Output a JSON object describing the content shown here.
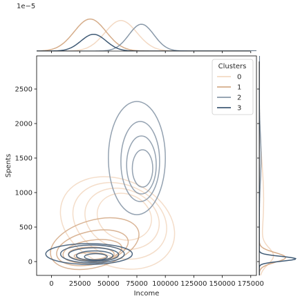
{
  "chart_data": {
    "type": "joint-kde",
    "title": "",
    "xlabel": "Income",
    "ylabel": "Spents",
    "xlim": [
      -13000,
      180000
    ],
    "ylim": [
      -200,
      2980
    ],
    "x_ticks": [
      0,
      25000,
      50000,
      75000,
      100000,
      125000,
      150000,
      175000
    ],
    "y_ticks": [
      0,
      500,
      1000,
      1500,
      2000,
      2500
    ],
    "top_marginal_scale_label": "1e−5",
    "legend": {
      "title": "Clusters",
      "placement": "top-right",
      "entries": [
        "0",
        "1",
        "2",
        "3"
      ]
    },
    "series": [
      {
        "name": "0",
        "color": "#F3D9C3",
        "income_mode": 60000,
        "spent_mode": 1000,
        "contour_levels": [
          {
            "cx": 64000,
            "cy": 650,
            "rx": 20000,
            "ry": 400,
            "angle": 70
          },
          {
            "cx": 62000,
            "cy": 620,
            "rx": 26000,
            "ry": 550,
            "angle": 70
          },
          {
            "cx": 60000,
            "cy": 590,
            "rx": 32000,
            "ry": 700,
            "angle": 68
          },
          {
            "cx": 58000,
            "cy": 560,
            "rx": 38000,
            "ry": 860,
            "angle": 66
          }
        ]
      },
      {
        "name": "1",
        "color": "#D5AC89",
        "income_mode": 34000,
        "spent_mode": 60,
        "contour_levels": [
          {
            "cx": 34000,
            "cy": 80,
            "rx": 14000,
            "ry": 50,
            "angle": 0
          },
          {
            "cx": 35000,
            "cy": 110,
            "rx": 20000,
            "ry": 100,
            "angle": 0
          },
          {
            "cx": 36000,
            "cy": 150,
            "rx": 26000,
            "ry": 160,
            "angle": 8
          },
          {
            "cx": 36000,
            "cy": 200,
            "rx": 32000,
            "ry": 240,
            "angle": 12
          },
          {
            "cx": 38000,
            "cy": 260,
            "rx": 40000,
            "ry": 340,
            "angle": 16
          }
        ]
      },
      {
        "name": "2",
        "color": "#8898A8",
        "income_mode": 80000,
        "spent_mode": 1500,
        "contour_levels": [
          {
            "cx": 80000,
            "cy": 1350,
            "rx": 9000,
            "ry": 270,
            "angle": 0
          },
          {
            "cx": 79000,
            "cy": 1400,
            "rx": 13000,
            "ry": 420,
            "angle": 0
          },
          {
            "cx": 78000,
            "cy": 1450,
            "rx": 17000,
            "ry": 580,
            "angle": 0
          },
          {
            "cx": 75000,
            "cy": 1500,
            "rx": 25000,
            "ry": 820,
            "angle": 0
          }
        ]
      },
      {
        "name": "3",
        "color": "#3F5A75",
        "income_mode": 38000,
        "spent_mode": 60,
        "contour_levels": [
          {
            "cx": 39000,
            "cy": 70,
            "rx": 10000,
            "ry": 45,
            "angle": 0
          },
          {
            "cx": 38000,
            "cy": 85,
            "rx": 16000,
            "ry": 70,
            "angle": 0
          },
          {
            "cx": 37000,
            "cy": 100,
            "rx": 22000,
            "ry": 100,
            "angle": 0
          },
          {
            "cx": 36000,
            "cy": 110,
            "rx": 28000,
            "ry": 130,
            "angle": 0
          },
          {
            "cx": 33000,
            "cy": 110,
            "rx": 38000,
            "ry": 150,
            "angle": 0
          }
        ]
      }
    ],
    "marginal_x": [
      {
        "name": "0",
        "peaks": [
          {
            "mean": 61000,
            "sd": 14000,
            "height": 0.82
          }
        ]
      },
      {
        "name": "1",
        "peaks": [
          {
            "mean": 34000,
            "sd": 14000,
            "height": 0.86
          }
        ]
      },
      {
        "name": "2",
        "peaks": [
          {
            "mean": 79000,
            "sd": 11000,
            "height": 0.72
          }
        ]
      },
      {
        "name": "3",
        "peaks": [
          {
            "mean": 37000,
            "sd": 11000,
            "height": 0.45
          }
        ]
      }
    ],
    "marginal_y": [
      {
        "name": "0",
        "peaks": [
          {
            "mean": 900,
            "sd": 550,
            "height": 0.12
          },
          {
            "mean": 80,
            "sd": 120,
            "height": 0.35
          }
        ]
      },
      {
        "name": "1",
        "peaks": [
          {
            "mean": 60,
            "sd": 70,
            "height": 0.72
          }
        ]
      },
      {
        "name": "2",
        "peaks": [
          {
            "mean": 1500,
            "sd": 350,
            "height": 0.05
          }
        ]
      },
      {
        "name": "3",
        "peaks": [
          {
            "mean": 40,
            "sd": 35,
            "height": 1.0
          }
        ]
      }
    ]
  }
}
